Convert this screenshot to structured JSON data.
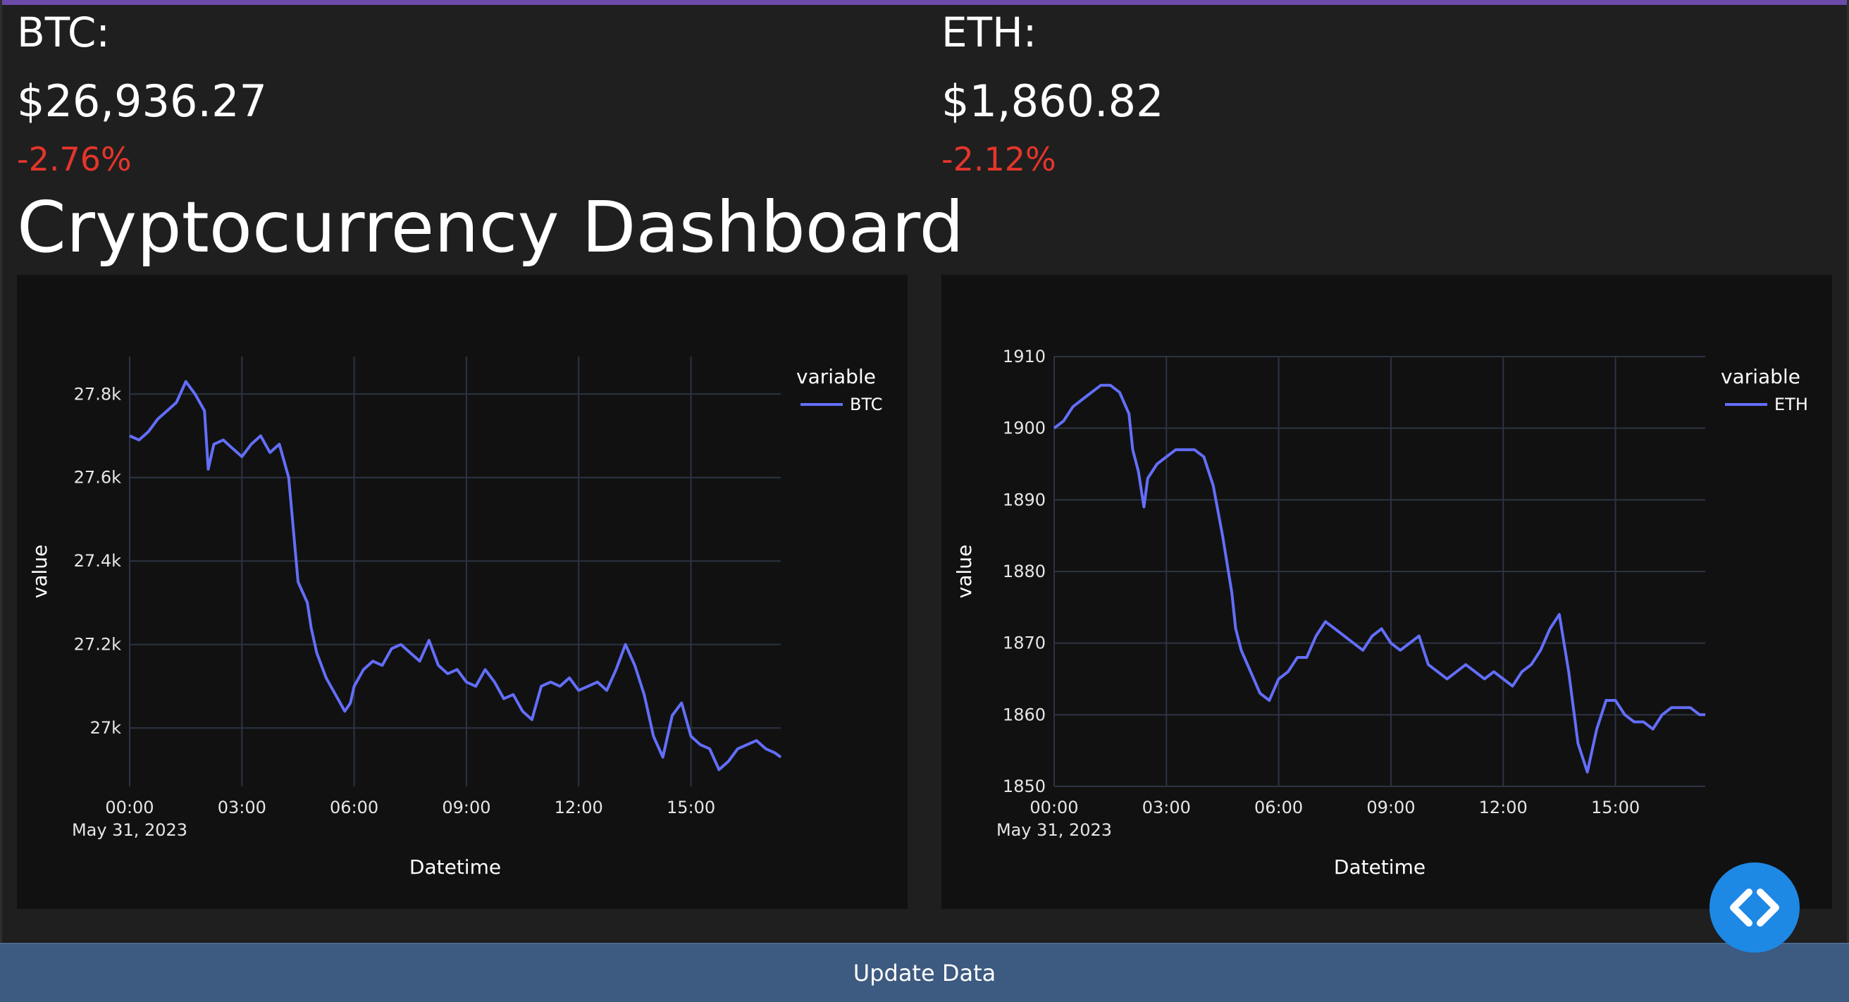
{
  "coins": [
    {
      "symbol": "BTC:",
      "price": "$26,936.27",
      "change": "-2.76%"
    },
    {
      "symbol": "ETH:",
      "price": "$1,860.82",
      "change": "-2.12%"
    }
  ],
  "title": "Cryptocurrency Dashboard",
  "button_label": "Update Data",
  "fab_icon": "code-brackets-icon",
  "colors": {
    "line": "#636efa",
    "negative": "#e5352b",
    "button": "#3d5a80",
    "fab": "#1e88e5"
  },
  "chart_data": [
    {
      "type": "line",
      "title": "",
      "xlabel": "Datetime",
      "ylabel": "value",
      "legend_title": "variable",
      "legend_position": "top-right",
      "grid": true,
      "x_ticks": [
        "00:00",
        "03:00",
        "06:00",
        "09:00",
        "12:00",
        "15:00"
      ],
      "x_date_label": "May 31, 2023",
      "y_ticks": [
        27000,
        27200,
        27400,
        27600,
        27800
      ],
      "y_tick_labels": [
        "27k",
        "27.2k",
        "27.4k",
        "27.6k",
        "27.8k"
      ],
      "ylim": [
        26860,
        27890
      ],
      "x_hours_range": [
        0,
        17.4
      ],
      "series": [
        {
          "name": "BTC",
          "x_hours": [
            0,
            0.25,
            0.5,
            0.75,
            1,
            1.25,
            1.5,
            1.75,
            2,
            2.1,
            2.25,
            2.5,
            2.75,
            3,
            3.25,
            3.5,
            3.75,
            4,
            4.25,
            4.5,
            4.75,
            4.85,
            5,
            5.25,
            5.5,
            5.75,
            5.9,
            6,
            6.25,
            6.5,
            6.75,
            7,
            7.25,
            7.5,
            7.75,
            8,
            8.25,
            8.5,
            8.75,
            9,
            9.25,
            9.5,
            9.75,
            10,
            10.25,
            10.5,
            10.75,
            11,
            11.25,
            11.5,
            11.75,
            12,
            12.25,
            12.5,
            12.75,
            13,
            13.25,
            13.5,
            13.75,
            14,
            14.25,
            14.5,
            14.75,
            15,
            15.25,
            15.5,
            15.75,
            16,
            16.25,
            16.5,
            16.75,
            17,
            17.25,
            17.4
          ],
          "values": [
            27700,
            27690,
            27710,
            27740,
            27760,
            27780,
            27830,
            27800,
            27760,
            27620,
            27680,
            27690,
            27670,
            27650,
            27680,
            27700,
            27660,
            27680,
            27600,
            27350,
            27300,
            27240,
            27180,
            27120,
            27080,
            27040,
            27060,
            27100,
            27140,
            27160,
            27150,
            27190,
            27200,
            27180,
            27160,
            27210,
            27150,
            27130,
            27140,
            27110,
            27100,
            27140,
            27110,
            27070,
            27080,
            27040,
            27020,
            27100,
            27110,
            27100,
            27120,
            27090,
            27100,
            27110,
            27090,
            27140,
            27200,
            27150,
            27080,
            26980,
            26930,
            27030,
            27060,
            26980,
            26960,
            26950,
            26900,
            26920,
            26950,
            26960,
            26970,
            26950,
            26940,
            26930
          ]
        }
      ]
    },
    {
      "type": "line",
      "title": "",
      "xlabel": "Datetime",
      "ylabel": "value",
      "legend_title": "variable",
      "legend_position": "top-right",
      "grid": true,
      "x_ticks": [
        "00:00",
        "03:00",
        "06:00",
        "09:00",
        "12:00",
        "15:00"
      ],
      "x_date_label": "May 31, 2023",
      "y_ticks": [
        1850,
        1860,
        1870,
        1880,
        1890,
        1900,
        1910
      ],
      "y_tick_labels": [
        "1850",
        "1860",
        "1870",
        "1880",
        "1890",
        "1900",
        "1910"
      ],
      "ylim": [
        1850,
        1910
      ],
      "x_hours_range": [
        0,
        17.4
      ],
      "series": [
        {
          "name": "ETH",
          "x_hours": [
            0,
            0.25,
            0.5,
            0.75,
            1,
            1.25,
            1.5,
            1.75,
            2,
            2.1,
            2.25,
            2.4,
            2.5,
            2.75,
            3,
            3.25,
            3.5,
            3.75,
            4,
            4.25,
            4.5,
            4.75,
            4.85,
            5,
            5.25,
            5.5,
            5.75,
            6,
            6.25,
            6.5,
            6.75,
            7,
            7.25,
            7.5,
            7.75,
            8,
            8.25,
            8.5,
            8.75,
            9,
            9.25,
            9.5,
            9.75,
            10,
            10.25,
            10.5,
            10.75,
            11,
            11.25,
            11.5,
            11.75,
            12,
            12.25,
            12.5,
            12.75,
            13,
            13.25,
            13.5,
            13.75,
            14,
            14.25,
            14.5,
            14.75,
            15,
            15.25,
            15.5,
            15.75,
            16,
            16.25,
            16.5,
            16.75,
            17,
            17.25,
            17.4
          ],
          "values": [
            1900,
            1901,
            1903,
            1904,
            1905,
            1906,
            1906,
            1905,
            1902,
            1897,
            1894,
            1889,
            1893,
            1895,
            1896,
            1897,
            1897,
            1897,
            1896,
            1892,
            1885,
            1877,
            1872,
            1869,
            1866,
            1863,
            1862,
            1865,
            1866,
            1868,
            1868,
            1871,
            1873,
            1872,
            1871,
            1870,
            1869,
            1871,
            1872,
            1870,
            1869,
            1870,
            1871,
            1867,
            1866,
            1865,
            1866,
            1867,
            1866,
            1865,
            1866,
            1865,
            1864,
            1866,
            1867,
            1869,
            1872,
            1874,
            1866,
            1856,
            1852,
            1858,
            1862,
            1862,
            1860,
            1859,
            1859,
            1858,
            1860,
            1861,
            1861,
            1861,
            1860,
            1860
          ]
        }
      ]
    }
  ]
}
